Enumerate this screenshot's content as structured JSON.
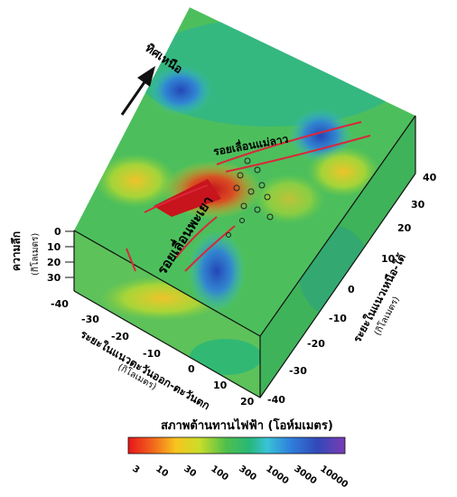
{
  "north_label": "ทิศเหนือ",
  "fault_1": "รอยเลื่อนแม่ลาว",
  "fault_2": "รอยเลื่อนพะเยา",
  "depth_label": "ความลึก",
  "depth_unit": "(กิโลเมตร)",
  "depth_ticks": [
    "0",
    "10",
    "20",
    "30"
  ],
  "ew_axis_label": "ระยะในแนวตะวันออก-ตะวันตก",
  "ew_axis_unit": "(กิโลเมตร)",
  "ew_ticks": [
    "-40",
    "-30",
    "-20",
    "-10",
    "0",
    "10",
    "20"
  ],
  "ns_axis_label": "ระยะในแนวเหนือ-ใต้",
  "ns_axis_unit": "(กิโลเมตร)",
  "ns_ticks": [
    "40",
    "30",
    "20",
    "10",
    "0",
    "-10",
    "-20",
    "-30",
    "-40"
  ],
  "colorbar_title": "สภาพต้านทานไฟฟ้า (โอห์มเมตร)",
  "colorbar_ticks": [
    "3",
    "10",
    "30",
    "100",
    "300",
    "1000",
    "3000",
    "10000"
  ],
  "colorbar_colors": [
    "#e8141c",
    "#f26b1d",
    "#f7c51e",
    "#c9dd2a",
    "#4fbf4a",
    "#27b77a",
    "#39c3d6",
    "#2f7fdc",
    "#3149b8",
    "#7a3bb5"
  ]
}
